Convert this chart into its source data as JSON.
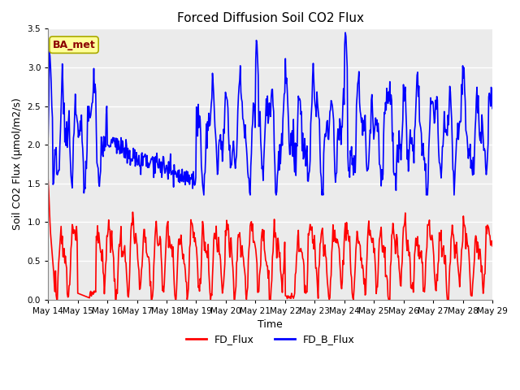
{
  "title": "Forced Diffusion Soil CO2 Flux",
  "xlabel": "Time",
  "ylabel": "Soil CO2 Flux (μmol/m2/s)",
  "ylim": [
    0.0,
    3.5
  ],
  "yticks": [
    0.0,
    0.5,
    1.0,
    1.5,
    2.0,
    2.5,
    3.0,
    3.5
  ],
  "x_tick_days": [
    14,
    15,
    16,
    17,
    18,
    19,
    20,
    21,
    22,
    23,
    24,
    25,
    26,
    27,
    28,
    29
  ],
  "legend_label1": "FD_Flux",
  "legend_label2": "FD_B_Flux",
  "color1": "#FF0000",
  "color2": "#0000FF",
  "annotation_text": "BA_met",
  "annotation_color": "#8B0000",
  "annotation_bg": "#FFFF99",
  "annotation_edge": "#AAAA00",
  "plot_bg": "#EBEBEB",
  "linewidth": 1.2,
  "title_fontsize": 11,
  "axis_fontsize": 9,
  "tick_fontsize": 7.5
}
